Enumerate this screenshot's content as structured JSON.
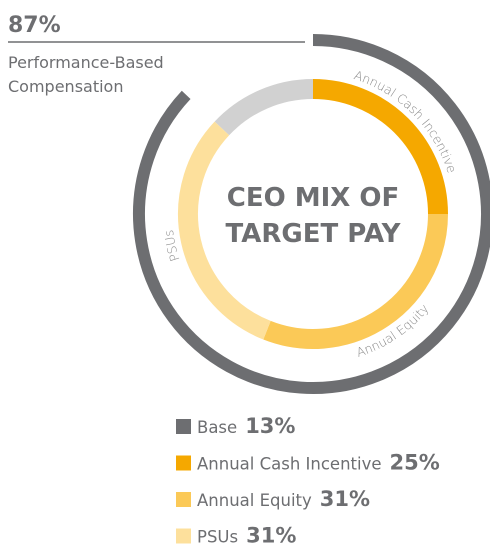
{
  "chart_data": {
    "type": "donut",
    "title": [
      "CEO MIX OF",
      "TARGET PAY"
    ],
    "annotation": {
      "value": 87,
      "value_label": "87%",
      "label": [
        "Performance-Based",
        "Compensation"
      ],
      "color": "#6d6e71"
    },
    "series": [
      {
        "name": "Base",
        "color": "#6d6e71",
        "values": [
          13
        ],
        "value_labels": [
          "13%"
        ]
      },
      {
        "name": "Annual Cash Incentive",
        "color": "#f5a800",
        "values": [
          25
        ],
        "value_labels": [
          "25%"
        ]
      },
      {
        "name": "Annual Equity",
        "color": "#fbc957",
        "values": [
          31
        ],
        "value_labels": [
          "31%"
        ]
      },
      {
        "name": "PSUs",
        "color": "#fde09c",
        "values": [
          31
        ],
        "value_labels": [
          "31%"
        ]
      }
    ]
  }
}
